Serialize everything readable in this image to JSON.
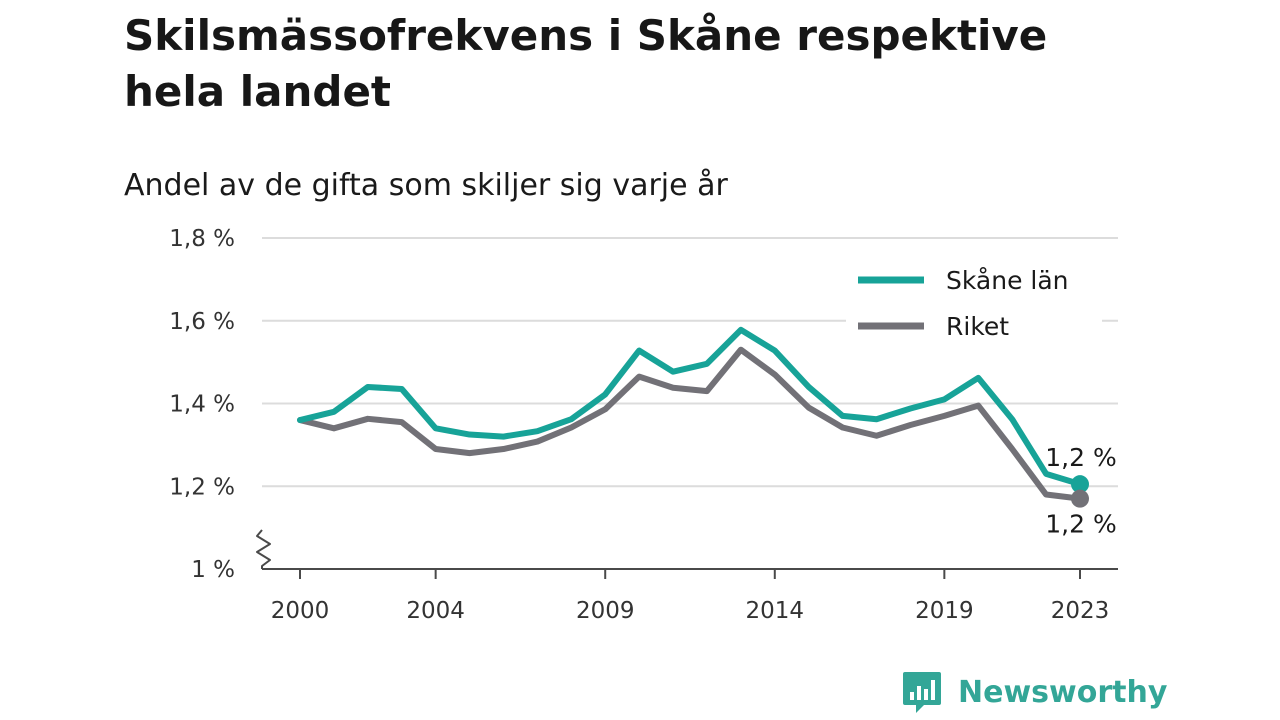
{
  "chart_data": {
    "type": "line",
    "title": "Skilsmässofrekvens i Skåne respektive hela landet",
    "subtitle": "Andel av de gifta som skiljer sig varje år",
    "xlabel": "",
    "ylabel": "",
    "x": [
      2000,
      2001,
      2002,
      2003,
      2004,
      2005,
      2006,
      2007,
      2008,
      2009,
      2010,
      2011,
      2012,
      2013,
      2014,
      2015,
      2016,
      2017,
      2018,
      2019,
      2020,
      2021,
      2022,
      2023
    ],
    "x_tick_labels": [
      "2000",
      "2004",
      "2009",
      "2014",
      "2019",
      "2023"
    ],
    "x_tick_values": [
      2000,
      2004,
      2009,
      2014,
      2019,
      2023
    ],
    "ylim": [
      1.0,
      1.8
    ],
    "y_tick_labels": [
      "1 %",
      "1,2 %",
      "1,4 %",
      "1,6 %",
      "1,8 %"
    ],
    "y_tick_values": [
      1.0,
      1.2,
      1.4,
      1.6,
      1.8
    ],
    "y_axis_break": true,
    "grid": true,
    "legend_position": "top-right",
    "series": [
      {
        "name": "Skåne län",
        "color": "#17a398",
        "values": [
          1.36,
          1.38,
          1.44,
          1.435,
          1.34,
          1.325,
          1.32,
          1.333,
          1.362,
          1.422,
          1.528,
          1.477,
          1.496,
          1.578,
          1.528,
          1.44,
          1.37,
          1.362,
          1.388,
          1.41,
          1.462,
          1.362,
          1.23,
          1.205
        ],
        "end_label": "1,2 %"
      },
      {
        "name": "Riket",
        "color": "#727177",
        "values": [
          1.36,
          1.34,
          1.363,
          1.355,
          1.29,
          1.28,
          1.29,
          1.308,
          1.342,
          1.386,
          1.465,
          1.438,
          1.43,
          1.53,
          1.47,
          1.39,
          1.342,
          1.322,
          1.348,
          1.37,
          1.395,
          1.29,
          1.18,
          1.17
        ],
        "end_label": "1,2 %"
      }
    ]
  },
  "brand": {
    "name": "Newsworthy",
    "color": "#33a697"
  }
}
